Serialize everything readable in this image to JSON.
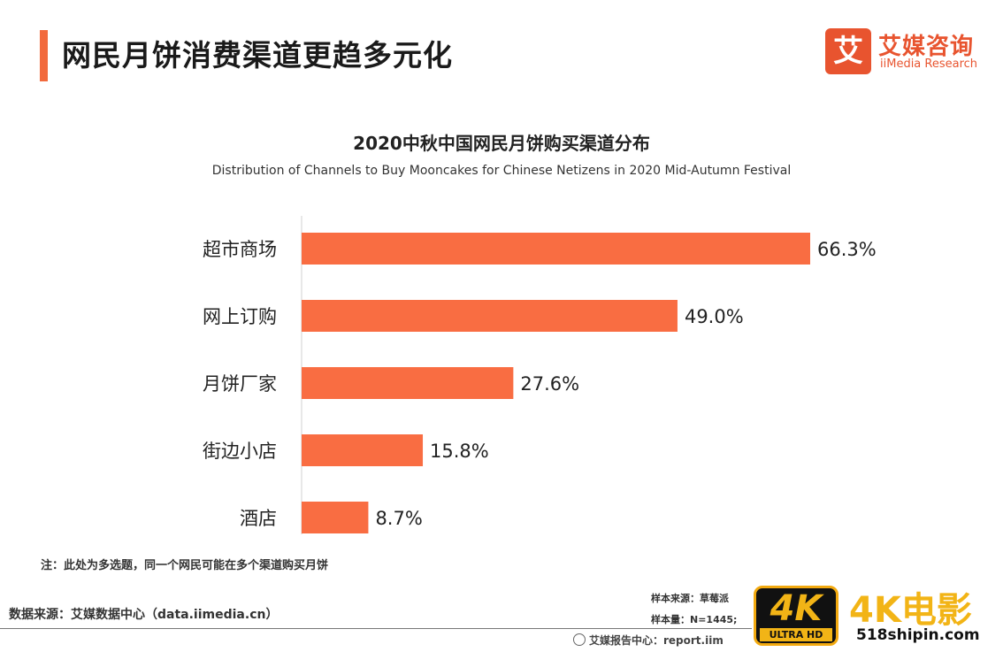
{
  "header": {
    "title": "网民月饼消费渠道更趋多元化",
    "accent_color": "#f26a3d"
  },
  "logo": {
    "mark": "艾",
    "cn": "艾媒咨询",
    "en": "iiMedia Research",
    "color": "#e8542f"
  },
  "chart_data": {
    "type": "bar",
    "orientation": "horizontal",
    "title": "2020中秋中国网民月饼购买渠道分布",
    "subtitle": "Distribution of Channels to Buy Mooncakes for Chinese Netizens in 2020 Mid-Autumn Festival",
    "categories": [
      "超市商场",
      "网上订购",
      "月饼厂家",
      "街边小店",
      "酒店"
    ],
    "values": [
      66.3,
      49.0,
      27.6,
      15.8,
      8.7
    ],
    "value_labels": [
      "66.3%",
      "49.0%",
      "27.6%",
      "15.8%",
      "8.7%"
    ],
    "unit": "%",
    "xlim": [
      0,
      66.3
    ],
    "bar_color": "#f96d42",
    "grid": false,
    "legend": "none"
  },
  "footer": {
    "note": "注：此处为多选题，同一个网民可能在多个渠道购买月饼",
    "source": "数据来源：艾媒数据中心（data.iimedia.cn）",
    "sample_source": "样本来源：草莓派",
    "sample_size": "样本量：N=1445;",
    "report_center": "艾媒报告中心：report.iim"
  },
  "watermark": {
    "badge_main": "4K",
    "badge_sub": "ULTRA HD",
    "text": "4K电影",
    "url": "518shipin.com"
  }
}
